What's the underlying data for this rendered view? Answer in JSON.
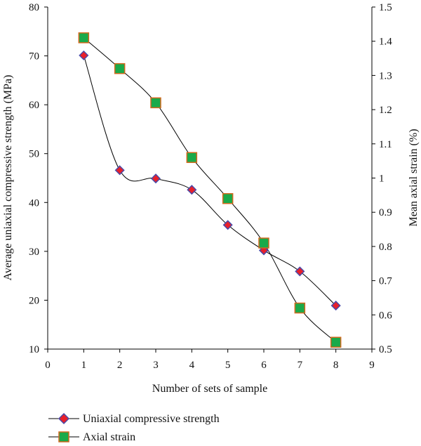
{
  "chart_data": {
    "type": "line",
    "xlabel": "Number of sets of sample",
    "ylabel_left": "Average uniaxial compressive strength (MPa)",
    "ylabel_right": "Mean axial strain (%)",
    "xlim": [
      0,
      9
    ],
    "ylim_left": [
      10,
      80
    ],
    "ylim_right": [
      0.5,
      1.5
    ],
    "x_ticks": [
      "0",
      "1",
      "2",
      "3",
      "4",
      "5",
      "6",
      "7",
      "8",
      "9"
    ],
    "y_left_ticks": [
      "10",
      "20",
      "30",
      "40",
      "50",
      "60",
      "70",
      "80"
    ],
    "y_right_ticks": [
      "0.5",
      "0.6",
      "0.7",
      "0.8",
      "0.9",
      "1",
      "1.1",
      "1.2",
      "1.3",
      "1.4",
      "1.5"
    ],
    "grid": false,
    "legend_position": "bottom-left",
    "series": [
      {
        "name": "Uniaxial compressive strength",
        "axis": "left",
        "marker": "diamond",
        "marker_fill": "#e8202a",
        "marker_stroke": "#4a4aa8",
        "x": [
          1,
          2,
          3,
          4,
          5,
          6,
          7,
          8
        ],
        "values": [
          70.1,
          46.6,
          44.9,
          42.6,
          35.4,
          30.2,
          25.9,
          18.9
        ]
      },
      {
        "name": "Axial strain",
        "axis": "right",
        "marker": "square",
        "marker_fill": "#1aaa4a",
        "marker_stroke": "#d2691e",
        "x": [
          1,
          2,
          3,
          4,
          5,
          6,
          7,
          8
        ],
        "values": [
          1.41,
          1.32,
          1.22,
          1.06,
          0.94,
          0.81,
          0.62,
          0.52
        ]
      }
    ]
  }
}
